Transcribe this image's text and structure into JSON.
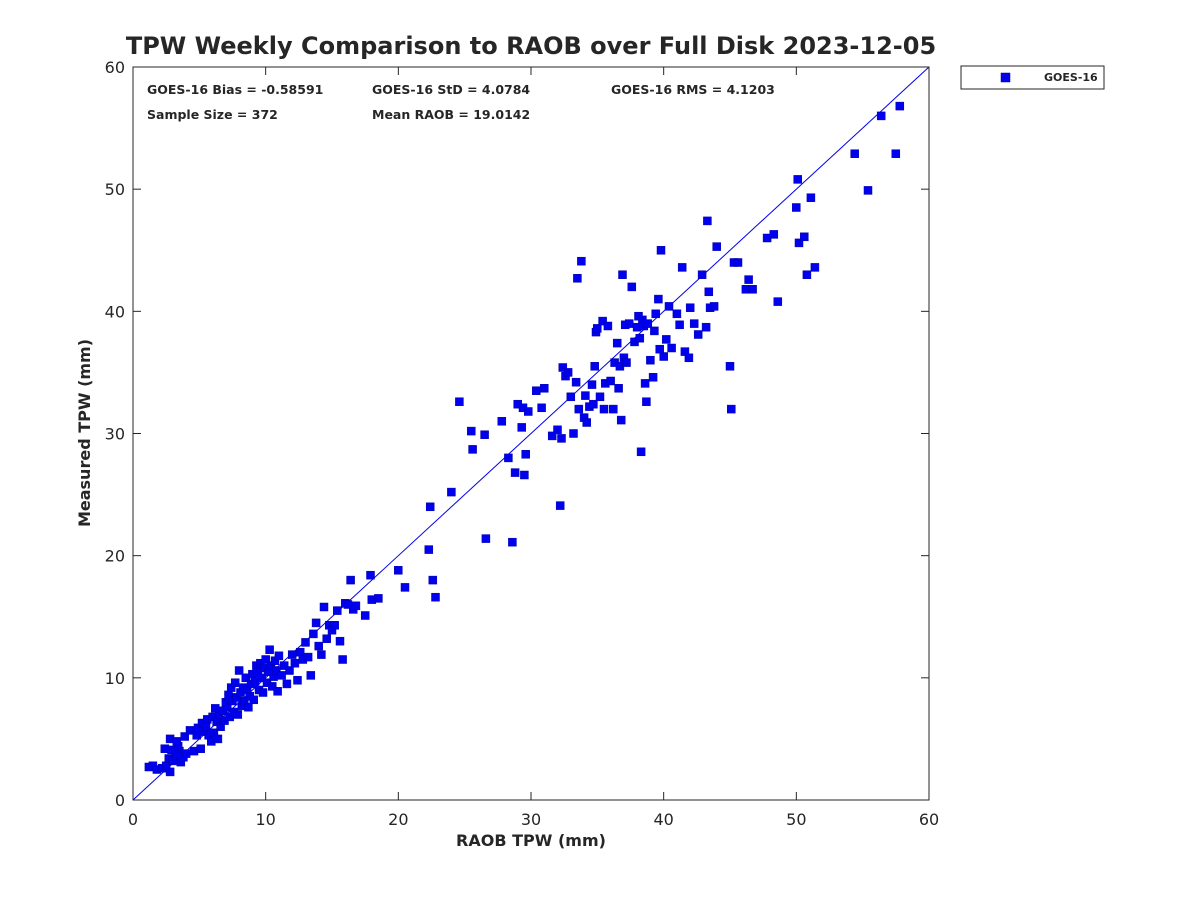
{
  "chart_data": {
    "type": "scatter",
    "title": "TPW Weekly Comparison to RAOB over Full Disk 2023-12-05",
    "xlabel": "RAOB TPW (mm)",
    "ylabel": "Measured TPW (mm)",
    "xlim": [
      0,
      60
    ],
    "ylim": [
      0,
      60
    ],
    "xticks": [
      "0",
      "10",
      "20",
      "30",
      "40",
      "50",
      "60"
    ],
    "yticks": [
      "0",
      "10",
      "20",
      "30",
      "40",
      "50",
      "60"
    ],
    "grid": false,
    "legend_position": "outside-top-right",
    "reference_line": {
      "from": [
        0,
        0
      ],
      "to": [
        60,
        60
      ],
      "color": "#0000ee"
    },
    "stats": {
      "bias": "GOES-16 Bias = -0.58591",
      "std": "GOES-16 StD = 4.0784",
      "rms": "GOES-16 RMS = 4.1203",
      "sample_size": "Sample Size = 372",
      "mean_raob": "Mean RAOB = 19.0142"
    },
    "series": [
      {
        "name": "GOES-16",
        "color": "#0000ee",
        "marker": "square",
        "points": [
          [
            1.2,
            2.7
          ],
          [
            1.5,
            2.8
          ],
          [
            1.8,
            2.5
          ],
          [
            2.2,
            2.6
          ],
          [
            2.5,
            2.8
          ],
          [
            2.8,
            2.3
          ],
          [
            2.7,
            3.4
          ],
          [
            3.0,
            3.2
          ],
          [
            3.2,
            3.8
          ],
          [
            3.5,
            4.0
          ],
          [
            3.3,
            3.6
          ],
          [
            3.6,
            3.1
          ],
          [
            3.8,
            3.5
          ],
          [
            4.0,
            3.8
          ],
          [
            2.4,
            4.2
          ],
          [
            2.9,
            4.1
          ],
          [
            3.4,
            4.4
          ],
          [
            2.8,
            5.0
          ],
          [
            3.3,
            4.8
          ],
          [
            3.9,
            5.2
          ],
          [
            4.3,
            5.7
          ],
          [
            4.6,
            4.0
          ],
          [
            4.8,
            5.3
          ],
          [
            4.9,
            5.9
          ],
          [
            5.1,
            4.2
          ],
          [
            5.3,
            5.6
          ],
          [
            5.2,
            6.3
          ],
          [
            5.5,
            6.0
          ],
          [
            5.7,
            5.3
          ],
          [
            5.6,
            6.6
          ],
          [
            5.9,
            4.8
          ],
          [
            6.1,
            5.5
          ],
          [
            6.0,
            6.8
          ],
          [
            6.3,
            6.4
          ],
          [
            6.4,
            5.0
          ],
          [
            6.5,
            7.0
          ],
          [
            6.6,
            6.0
          ],
          [
            6.2,
            7.5
          ],
          [
            6.8,
            7.3
          ],
          [
            6.9,
            6.5
          ],
          [
            7.0,
            8.0
          ],
          [
            7.1,
            7.6
          ],
          [
            7.2,
            8.6
          ],
          [
            7.3,
            6.8
          ],
          [
            7.4,
            9.2
          ],
          [
            7.5,
            8.1
          ],
          [
            7.6,
            7.2
          ],
          [
            7.7,
            9.6
          ],
          [
            7.8,
            8.4
          ],
          [
            7.9,
            7.0
          ],
          [
            8.0,
            10.6
          ],
          [
            8.1,
            8.8
          ],
          [
            8.2,
            7.7
          ],
          [
            8.3,
            9.2
          ],
          [
            8.4,
            8.1
          ],
          [
            8.5,
            10.0
          ],
          [
            8.6,
            9.0
          ],
          [
            8.7,
            7.6
          ],
          [
            8.8,
            8.5
          ],
          [
            8.9,
            9.5
          ],
          [
            9.0,
            10.3
          ],
          [
            9.1,
            8.2
          ],
          [
            9.2,
            9.7
          ],
          [
            9.3,
            11.0
          ],
          [
            9.4,
            10.4
          ],
          [
            9.5,
            9.0
          ],
          [
            9.6,
            11.2
          ],
          [
            9.7,
            10.0
          ],
          [
            9.8,
            8.8
          ],
          [
            9.9,
            10.8
          ],
          [
            10.0,
            11.5
          ],
          [
            10.1,
            9.6
          ],
          [
            10.2,
            10.5
          ],
          [
            10.3,
            12.3
          ],
          [
            10.4,
            11.0
          ],
          [
            10.5,
            9.3
          ],
          [
            10.6,
            10.1
          ],
          [
            10.7,
            11.4
          ],
          [
            10.8,
            10.6
          ],
          [
            10.9,
            8.9
          ],
          [
            11.0,
            11.8
          ],
          [
            11.2,
            10.2
          ],
          [
            11.4,
            11.0
          ],
          [
            11.6,
            9.5
          ],
          [
            11.8,
            10.6
          ],
          [
            12.0,
            11.9
          ],
          [
            12.2,
            11.2
          ],
          [
            12.4,
            9.8
          ],
          [
            12.6,
            12.1
          ],
          [
            12.8,
            11.5
          ],
          [
            13.0,
            12.9
          ],
          [
            13.2,
            11.7
          ],
          [
            13.4,
            10.2
          ],
          [
            13.6,
            13.6
          ],
          [
            13.8,
            14.5
          ],
          [
            14.0,
            12.6
          ],
          [
            14.2,
            11.9
          ],
          [
            14.4,
            15.8
          ],
          [
            14.6,
            13.2
          ],
          [
            14.8,
            14.3
          ],
          [
            15.0,
            13.9
          ],
          [
            15.2,
            14.3
          ],
          [
            15.4,
            15.5
          ],
          [
            15.6,
            13.0
          ],
          [
            15.8,
            11.5
          ],
          [
            16.0,
            16.1
          ],
          [
            16.2,
            16.0
          ],
          [
            16.4,
            18.0
          ],
          [
            16.6,
            15.6
          ],
          [
            16.8,
            15.9
          ],
          [
            17.5,
            15.1
          ],
          [
            17.9,
            18.4
          ],
          [
            18.0,
            16.4
          ],
          [
            18.5,
            16.5
          ],
          [
            20.0,
            18.8
          ],
          [
            20.5,
            17.4
          ],
          [
            22.3,
            20.5
          ],
          [
            22.4,
            24.0
          ],
          [
            22.6,
            18.0
          ],
          [
            22.8,
            16.6
          ],
          [
            24.0,
            25.2
          ],
          [
            24.6,
            32.6
          ],
          [
            25.5,
            30.2
          ],
          [
            25.6,
            28.7
          ],
          [
            26.5,
            29.9
          ],
          [
            26.6,
            21.4
          ],
          [
            27.8,
            31.0
          ],
          [
            28.3,
            28.0
          ],
          [
            28.6,
            21.1
          ],
          [
            28.8,
            26.8
          ],
          [
            29.0,
            32.4
          ],
          [
            29.3,
            30.5
          ],
          [
            29.4,
            32.1
          ],
          [
            29.5,
            26.6
          ],
          [
            29.6,
            28.3
          ],
          [
            29.8,
            31.8
          ],
          [
            30.4,
            33.5
          ],
          [
            30.8,
            32.1
          ],
          [
            31.0,
            33.7
          ],
          [
            31.6,
            29.8
          ],
          [
            32.0,
            30.3
          ],
          [
            32.2,
            24.1
          ],
          [
            32.3,
            29.6
          ],
          [
            32.4,
            35.4
          ],
          [
            32.6,
            34.7
          ],
          [
            32.8,
            35.0
          ],
          [
            33.0,
            33.0
          ],
          [
            33.2,
            30.0
          ],
          [
            33.4,
            34.2
          ],
          [
            33.5,
            42.7
          ],
          [
            33.6,
            32.0
          ],
          [
            33.8,
            44.1
          ],
          [
            34.0,
            31.3
          ],
          [
            34.1,
            33.1
          ],
          [
            34.2,
            30.9
          ],
          [
            34.4,
            32.2
          ],
          [
            34.6,
            34.0
          ],
          [
            34.7,
            32.4
          ],
          [
            34.8,
            35.5
          ],
          [
            34.9,
            38.3
          ],
          [
            35.0,
            38.6
          ],
          [
            35.2,
            33.0
          ],
          [
            35.4,
            39.2
          ],
          [
            35.5,
            32.0
          ],
          [
            35.6,
            34.1
          ],
          [
            35.8,
            38.8
          ],
          [
            36.0,
            34.3
          ],
          [
            36.2,
            32.0
          ],
          [
            36.3,
            35.8
          ],
          [
            36.5,
            37.4
          ],
          [
            36.6,
            33.7
          ],
          [
            36.7,
            35.5
          ],
          [
            36.8,
            31.1
          ],
          [
            36.9,
            43.0
          ],
          [
            37.0,
            36.2
          ],
          [
            37.1,
            38.9
          ],
          [
            37.2,
            35.8
          ],
          [
            37.4,
            39.0
          ],
          [
            37.6,
            42.0
          ],
          [
            37.8,
            37.5
          ],
          [
            38.0,
            38.7
          ],
          [
            38.1,
            39.6
          ],
          [
            38.2,
            37.8
          ],
          [
            38.3,
            28.5
          ],
          [
            38.4,
            39.3
          ],
          [
            38.5,
            38.8
          ],
          [
            38.6,
            34.1
          ],
          [
            38.7,
            32.6
          ],
          [
            38.8,
            39.0
          ],
          [
            39.0,
            36.0
          ],
          [
            39.2,
            34.6
          ],
          [
            39.3,
            38.4
          ],
          [
            39.4,
            39.8
          ],
          [
            39.6,
            41.0
          ],
          [
            39.7,
            36.9
          ],
          [
            39.8,
            45.0
          ],
          [
            40.0,
            36.3
          ],
          [
            40.2,
            37.7
          ],
          [
            40.4,
            40.4
          ],
          [
            40.6,
            37.0
          ],
          [
            41.0,
            39.8
          ],
          [
            41.2,
            38.9
          ],
          [
            41.4,
            43.6
          ],
          [
            41.6,
            36.7
          ],
          [
            41.9,
            36.2
          ],
          [
            42.0,
            40.3
          ],
          [
            42.3,
            39.0
          ],
          [
            42.6,
            38.1
          ],
          [
            42.9,
            43.0
          ],
          [
            43.2,
            38.7
          ],
          [
            43.3,
            47.4
          ],
          [
            43.4,
            41.6
          ],
          [
            43.5,
            40.3
          ],
          [
            43.8,
            40.4
          ],
          [
            44.0,
            45.3
          ],
          [
            45.0,
            35.5
          ],
          [
            45.1,
            32.0
          ],
          [
            45.3,
            44.0
          ],
          [
            45.6,
            44.0
          ],
          [
            46.2,
            41.8
          ],
          [
            46.4,
            42.6
          ],
          [
            46.7,
            41.8
          ],
          [
            47.8,
            46.0
          ],
          [
            48.3,
            46.3
          ],
          [
            48.6,
            40.8
          ],
          [
            50.0,
            48.5
          ],
          [
            50.1,
            50.8
          ],
          [
            50.2,
            45.6
          ],
          [
            50.6,
            46.1
          ],
          [
            50.8,
            43.0
          ],
          [
            51.1,
            49.3
          ],
          [
            51.4,
            43.6
          ],
          [
            54.4,
            52.9
          ],
          [
            55.4,
            49.9
          ],
          [
            56.4,
            56.0
          ],
          [
            57.5,
            52.9
          ],
          [
            57.8,
            56.8
          ]
        ]
      }
    ]
  }
}
